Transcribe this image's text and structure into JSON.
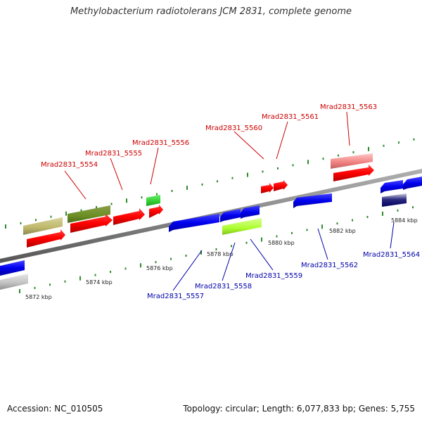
{
  "title": "Methylobacterium radiotolerans JCM 2831, complete genome",
  "accession": "Accession: NC_010505",
  "summary": "Topology: circular; Length: 6,077,833 bp; Genes: 5,755",
  "colors": {
    "forward_label": "#cc0000",
    "reverse_label": "#0000aa",
    "backbone": "#888888",
    "tick": "#2e8b2e"
  },
  "scale_labels": [
    "5872 kbp",
    "5874 kbp",
    "5876 kbp",
    "5878 kbp",
    "5880 kbp",
    "5882 kbp",
    "5884 kbp"
  ],
  "forward_genes": [
    {
      "name": "Mrad2831_5554"
    },
    {
      "name": "Mrad2831_5555"
    },
    {
      "name": "Mrad2831_5556"
    },
    {
      "name": "Mrad2831_5560"
    },
    {
      "name": "Mrad2831_5561"
    },
    {
      "name": "Mrad2831_5563"
    }
  ],
  "reverse_genes": [
    {
      "name": "Mrad2831_5557"
    },
    {
      "name": "Mrad2831_5558"
    },
    {
      "name": "Mrad2831_5559"
    },
    {
      "name": "Mrad2831_5562"
    },
    {
      "name": "Mrad2831_5564"
    }
  ]
}
